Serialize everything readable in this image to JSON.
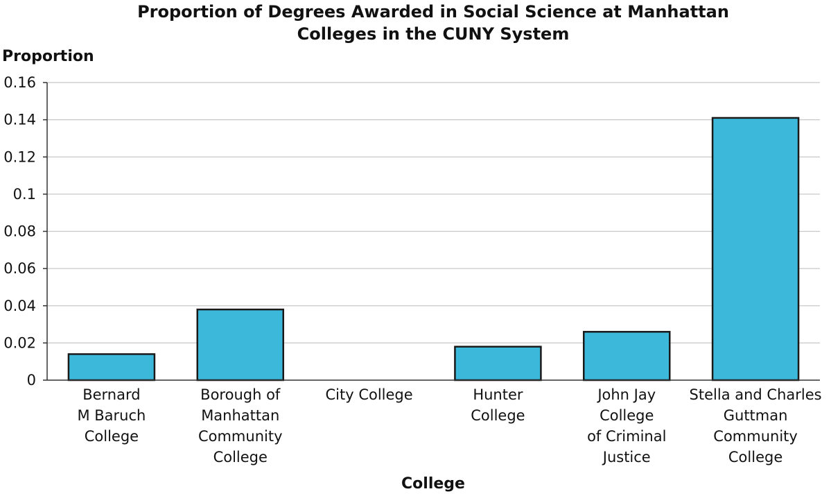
{
  "chart_data": {
    "type": "bar",
    "title": [
      "Proportion of Degrees Awarded in Social Science at Manhattan",
      "Colleges in the CUNY System"
    ],
    "ylabel": "Proportion",
    "xlabel": "College",
    "ylim": [
      0,
      0.16
    ],
    "yticks": [
      "0",
      "0.02",
      "0.04",
      "0.06",
      "0.08",
      "0.1",
      "0.12",
      "0.14",
      "0.16"
    ],
    "ytick_values": [
      0,
      0.02,
      0.04,
      0.06,
      0.08,
      0.1,
      0.12,
      0.14,
      0.16
    ],
    "grid": true,
    "bar_color": "#3cb8da",
    "categories": [
      [
        "Bernard",
        "M Baruch",
        "College"
      ],
      [
        "Borough of",
        "Manhattan",
        "Community",
        "College"
      ],
      [
        "City College"
      ],
      [
        "Hunter",
        "College"
      ],
      [
        "John Jay",
        "College",
        "of Criminal",
        "Justice"
      ],
      [
        "Stella and Charles",
        "Guttman",
        "Community",
        "College"
      ]
    ],
    "values": [
      0.014,
      0.038,
      0,
      0.018,
      0.026,
      0.141
    ]
  }
}
